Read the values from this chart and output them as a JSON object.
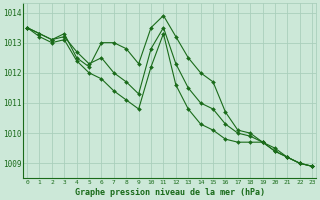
{
  "title": "Graphe pression niveau de la mer (hPa)",
  "background_color": "#cce8d8",
  "grid_color": "#aacfbc",
  "line_color": "#1a6b1a",
  "x_ticks": [
    0,
    1,
    2,
    3,
    4,
    5,
    6,
    7,
    8,
    9,
    10,
    11,
    12,
    13,
    14,
    15,
    16,
    17,
    18,
    19,
    20,
    21,
    22,
    23
  ],
  "ylim": [
    1008.5,
    1014.3
  ],
  "yticks": [
    1009,
    1010,
    1011,
    1012,
    1013,
    1014
  ],
  "series": [
    [
      1013.5,
      1013.3,
      1013.1,
      1013.3,
      1012.5,
      1012.2,
      1013.0,
      1013.0,
      1012.8,
      1012.3,
      1013.5,
      1013.9,
      1013.2,
      1012.5,
      1012.0,
      1011.7,
      1010.7,
      1010.1,
      1010.0,
      1009.7,
      1009.4,
      1009.2,
      1009.0,
      1008.9
    ],
    [
      1013.5,
      1013.3,
      1013.1,
      1013.2,
      1012.7,
      1012.3,
      1012.5,
      1012.0,
      1011.7,
      1011.3,
      1012.8,
      1013.5,
      1012.3,
      1011.5,
      1011.0,
      1010.8,
      1010.3,
      1010.0,
      1009.9,
      1009.7,
      1009.4,
      1009.2,
      1009.0,
      1008.9
    ],
    [
      1013.5,
      1013.2,
      1013.0,
      1013.1,
      1012.4,
      1012.0,
      1011.8,
      1011.4,
      1011.1,
      1010.8,
      1012.2,
      1013.3,
      1011.6,
      1010.8,
      1010.3,
      1010.1,
      1009.8,
      1009.7,
      1009.7,
      1009.7,
      1009.5,
      1009.2,
      1009.0,
      1008.9
    ]
  ]
}
